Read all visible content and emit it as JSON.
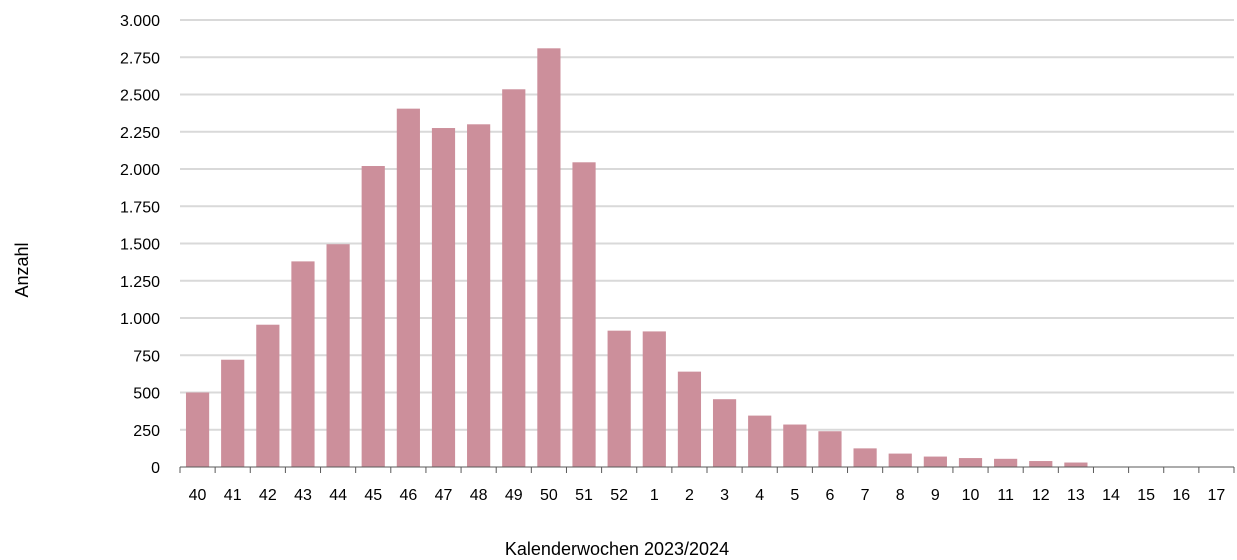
{
  "chart_data": {
    "type": "bar",
    "xlabel": "Kalenderwochen 2023/2024",
    "ylabel": "Anzahl",
    "ylim": [
      0,
      3000
    ],
    "yticks": [
      0,
      250,
      500,
      750,
      1000,
      1250,
      1500,
      1750,
      2000,
      2250,
      2500,
      2750,
      3000
    ],
    "ytick_labels": [
      "0",
      "250",
      "500",
      "750",
      "1.000",
      "1.250",
      "1.500",
      "1.750",
      "2.000",
      "2.250",
      "2.500",
      "2.750",
      "3.000"
    ],
    "grid": true,
    "bar_color": "#cc8f9b",
    "grid_color": "#d9d9d9",
    "categories": [
      "40",
      "41",
      "42",
      "43",
      "44",
      "45",
      "46",
      "47",
      "48",
      "49",
      "50",
      "51",
      "52",
      "1",
      "2",
      "3",
      "4",
      "5",
      "6",
      "7",
      "8",
      "9",
      "10",
      "11",
      "12",
      "13",
      "14",
      "15",
      "16",
      "17"
    ],
    "values": [
      500,
      720,
      955,
      1380,
      1495,
      2020,
      2405,
      2275,
      2300,
      2535,
      2810,
      2045,
      915,
      910,
      640,
      455,
      345,
      285,
      240,
      125,
      90,
      70,
      60,
      55,
      40,
      30,
      0,
      0,
      0,
      0
    ]
  }
}
